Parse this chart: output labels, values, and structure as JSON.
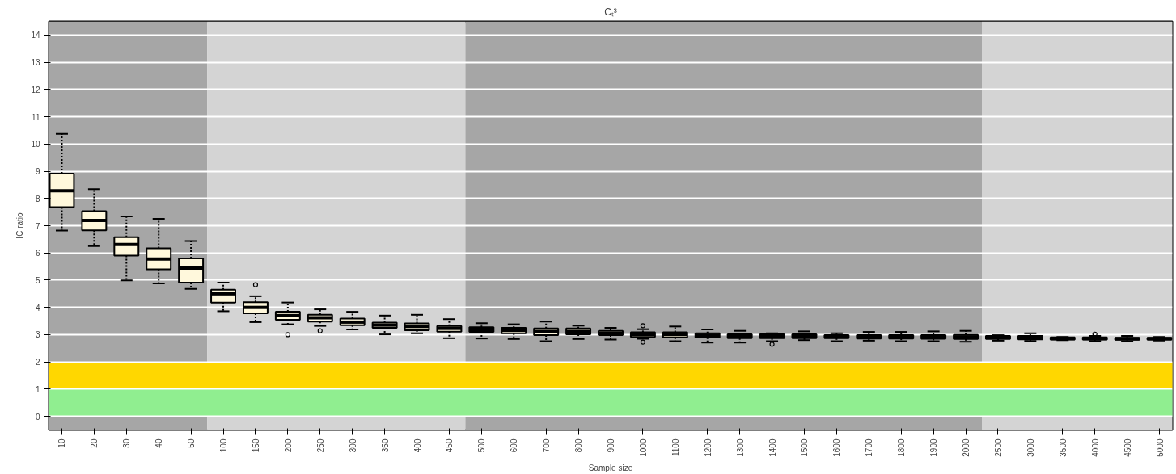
{
  "chart_data": {
    "type": "box",
    "title": "Cₜ³",
    "xlabel": "Sample size",
    "ylabel": "IC ratio",
    "categories": [
      "10",
      "20",
      "30",
      "40",
      "50",
      "100",
      "150",
      "200",
      "250",
      "300",
      "350",
      "400",
      "450",
      "500",
      "600",
      "700",
      "800",
      "900",
      "1000",
      "1100",
      "1200",
      "1300",
      "1400",
      "1500",
      "1600",
      "1700",
      "1800",
      "1900",
      "2000",
      "2500",
      "3000",
      "3500",
      "4000",
      "4500",
      "5000"
    ],
    "ylim": [
      -0.5,
      14.5
    ],
    "yticks": [
      0,
      1,
      2,
      3,
      4,
      5,
      6,
      7,
      8,
      9,
      10,
      11,
      12,
      13,
      14
    ],
    "grid": "y",
    "bands": [
      {
        "axis": "x",
        "from": "10",
        "to": "50",
        "color": "#a6a6a6"
      },
      {
        "axis": "x",
        "from": "100",
        "to": "450",
        "color": "#d4d4d4"
      },
      {
        "axis": "x",
        "from": "500",
        "to": "2000",
        "color": "#a6a6a6"
      },
      {
        "axis": "x",
        "from": "2500",
        "to": "5000",
        "color": "#d4d4d4"
      },
      {
        "axis": "y",
        "from": 1,
        "to": 2,
        "color": "#ffd700"
      },
      {
        "axis": "y",
        "from": 0,
        "to": 1,
        "color": "#90ee90"
      }
    ],
    "series": [
      {
        "color": "#fff8dc",
        "boxes": [
          {
            "low": 6.82,
            "q1": 7.68,
            "median": 8.28,
            "q3": 8.91,
            "high": 10.37
          },
          {
            "low": 6.25,
            "q1": 6.83,
            "median": 7.19,
            "q3": 7.53,
            "high": 8.34
          },
          {
            "low": 4.99,
            "q1": 5.9,
            "median": 6.31,
            "q3": 6.58,
            "high": 7.34
          },
          {
            "low": 4.88,
            "q1": 5.4,
            "median": 5.78,
            "q3": 6.17,
            "high": 7.25
          },
          {
            "low": 4.68,
            "q1": 4.91,
            "median": 5.44,
            "q3": 5.8,
            "high": 6.44
          },
          {
            "low": 3.86,
            "q1": 4.18,
            "median": 4.5,
            "q3": 4.65,
            "high": 4.91
          },
          {
            "low": 3.46,
            "q1": 3.78,
            "median": 4.0,
            "q3": 4.19,
            "high": 4.41,
            "outliers": [
              4.83
            ]
          },
          {
            "low": 3.38,
            "q1": 3.55,
            "median": 3.7,
            "q3": 3.84,
            "high": 4.18,
            "outliers": [
              3.0
            ]
          },
          {
            "low": 3.32,
            "q1": 3.48,
            "median": 3.62,
            "q3": 3.73,
            "high": 3.93,
            "outliers": [
              3.14
            ]
          },
          {
            "low": 3.19,
            "q1": 3.35,
            "median": 3.46,
            "q3": 3.59,
            "high": 3.84
          },
          {
            "low": 3.01,
            "q1": 3.25,
            "median": 3.35,
            "q3": 3.44,
            "high": 3.7
          },
          {
            "low": 3.05,
            "q1": 3.16,
            "median": 3.3,
            "q3": 3.41,
            "high": 3.73
          },
          {
            "low": 2.87,
            "q1": 3.11,
            "median": 3.23,
            "q3": 3.32,
            "high": 3.57
          },
          {
            "low": 2.86,
            "q1": 3.1,
            "median": 3.19,
            "q3": 3.27,
            "high": 3.42
          },
          {
            "low": 2.84,
            "q1": 3.05,
            "median": 3.16,
            "q3": 3.25,
            "high": 3.38
          },
          {
            "low": 2.76,
            "q1": 2.98,
            "median": 3.12,
            "q3": 3.23,
            "high": 3.48
          },
          {
            "low": 2.84,
            "q1": 3.01,
            "median": 3.12,
            "q3": 3.23,
            "high": 3.33
          },
          {
            "low": 2.82,
            "q1": 2.98,
            "median": 3.05,
            "q3": 3.14,
            "high": 3.25
          },
          {
            "low": 2.85,
            "q1": 2.92,
            "median": 3.01,
            "q3": 3.09,
            "high": 3.2,
            "outliers": [
              3.33,
              2.73
            ]
          },
          {
            "low": 2.76,
            "q1": 2.9,
            "median": 3.01,
            "q3": 3.09,
            "high": 3.3
          },
          {
            "low": 2.71,
            "q1": 2.9,
            "median": 2.98,
            "q3": 3.05,
            "high": 3.19
          },
          {
            "low": 2.71,
            "q1": 2.87,
            "median": 2.95,
            "q3": 3.01,
            "high": 3.14
          },
          {
            "low": 2.76,
            "q1": 2.87,
            "median": 2.95,
            "q3": 3.01,
            "high": 3.05,
            "outliers": [
              2.65
            ]
          },
          {
            "low": 2.8,
            "q1": 2.87,
            "median": 2.95,
            "q3": 3.01,
            "high": 3.12
          },
          {
            "low": 2.76,
            "q1": 2.87,
            "median": 2.92,
            "q3": 2.98,
            "high": 3.05
          },
          {
            "low": 2.78,
            "q1": 2.86,
            "median": 2.92,
            "q3": 2.98,
            "high": 3.1
          },
          {
            "low": 2.76,
            "q1": 2.86,
            "median": 2.92,
            "q3": 2.98,
            "high": 3.1
          },
          {
            "low": 2.76,
            "q1": 2.85,
            "median": 2.92,
            "q3": 2.98,
            "high": 3.12
          },
          {
            "low": 2.74,
            "q1": 2.84,
            "median": 2.92,
            "q3": 2.99,
            "high": 3.14
          },
          {
            "low": 2.78,
            "q1": 2.84,
            "median": 2.9,
            "q3": 2.95,
            "high": 2.98
          },
          {
            "low": 2.77,
            "q1": 2.83,
            "median": 2.88,
            "q3": 2.95,
            "high": 3.05
          },
          {
            "low": 2.8,
            "q1": 2.82,
            "median": 2.86,
            "q3": 2.9,
            "high": 2.92
          },
          {
            "low": 2.77,
            "q1": 2.82,
            "median": 2.86,
            "q3": 2.9,
            "high": 2.95,
            "outliers": [
              3.02
            ]
          },
          {
            "low": 2.75,
            "q1": 2.81,
            "median": 2.85,
            "q3": 2.89,
            "high": 2.95
          },
          {
            "low": 2.78,
            "q1": 2.82,
            "median": 2.85,
            "q3": 2.89,
            "high": 2.92
          }
        ]
      }
    ]
  }
}
